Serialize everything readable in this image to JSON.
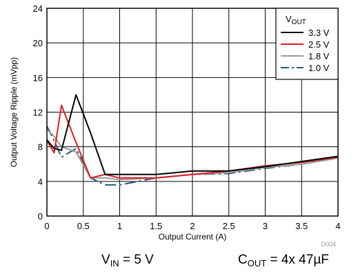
{
  "chart_data": {
    "type": "line",
    "xlabel": "Output Current (A)",
    "ylabel": "Output Voltage Ripple (mVpp)",
    "xlim": [
      0,
      4
    ],
    "ylim": [
      0,
      24
    ],
    "xticks": [
      0,
      0.5,
      1,
      1.5,
      2,
      2.5,
      3,
      3.5,
      4
    ],
    "xtick_labels": [
      "0",
      "0.5",
      "1",
      "1.5",
      "2",
      "2.5",
      "3",
      "3.5",
      "4"
    ],
    "yticks": [
      0,
      4,
      8,
      12,
      16,
      20,
      24
    ],
    "ytick_labels": [
      "0",
      "4",
      "8",
      "12",
      "16",
      "20",
      "24"
    ],
    "grid": true,
    "legend_position": "top-right",
    "legend_title": {
      "main": "V",
      "sub": "OUT"
    },
    "series": [
      {
        "name": "3.3 V",
        "color": "#000000",
        "dash": "solid",
        "x": [
          0,
          0.1,
          0.2,
          0.4,
          0.6,
          0.8,
          1.0,
          1.5,
          2.0,
          2.5,
          3.0,
          3.5,
          4.0
        ],
        "y": [
          8.8,
          7.8,
          7.6,
          14.0,
          9.6,
          4.8,
          4.8,
          4.8,
          5.2,
          5.2,
          5.7,
          6.3,
          6.9
        ]
      },
      {
        "name": "2.5 V",
        "color": "#e31a1c",
        "dash": "solid",
        "x": [
          0,
          0.1,
          0.2,
          0.4,
          0.6,
          0.8,
          1.0,
          1.5,
          2.0,
          2.5,
          3.0,
          3.5,
          4.0
        ],
        "y": [
          8.7,
          7.3,
          12.8,
          8.5,
          4.4,
          4.8,
          4.4,
          4.4,
          4.8,
          5.2,
          5.8,
          6.2,
          6.8
        ]
      },
      {
        "name": "1.8 V",
        "color": "#999999",
        "dash": "solid",
        "x": [
          0,
          0.1,
          0.2,
          0.4,
          0.6,
          0.8,
          1.0,
          1.5,
          2.0,
          2.5,
          3.0,
          3.5,
          4.0
        ],
        "y": [
          10.0,
          9.2,
          8.0,
          7.4,
          4.4,
          4.4,
          4.2,
          4.4,
          4.8,
          5.0,
          5.6,
          6.0,
          6.7
        ]
      },
      {
        "name": "1.0 V",
        "color": "#1f5a7a",
        "dash": "dashdot",
        "x": [
          0,
          0.1,
          0.2,
          0.4,
          0.6,
          0.8,
          1.0,
          1.5,
          2.0,
          2.5,
          3.0,
          3.5,
          4.0
        ],
        "y": [
          10.4,
          8.7,
          6.8,
          7.8,
          4.4,
          3.6,
          3.6,
          4.4,
          4.8,
          4.9,
          5.5,
          6.0,
          6.7
        ]
      }
    ],
    "watermark": "D004",
    "captions": {
      "vin": {
        "main": "V",
        "sub": "IN",
        "rest": " = 5 V"
      },
      "cout": {
        "main": "C",
        "sub": "OUT",
        "rest": " = 4x 47µF"
      }
    }
  }
}
